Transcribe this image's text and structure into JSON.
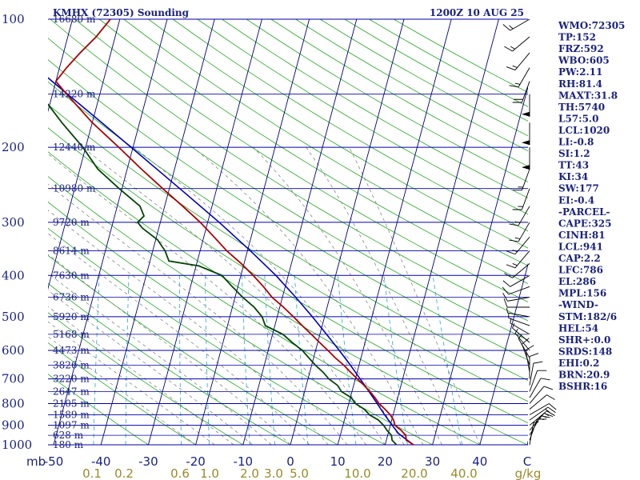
{
  "header": {
    "station": "KMHX (72305) Sounding",
    "time": "1200Z 10 AUG 25"
  },
  "colors": {
    "isobar": "#0000aa",
    "isotherm": "#000080",
    "dry_adiabat": "#22aa22",
    "moist_adiabat": "#777777",
    "mixing_ratio": "#22aacc",
    "temperature": "#aa0000",
    "dewpoint": "#004400",
    "parcel": "#0000bb",
    "label": "#1a237e",
    "mixing_label": "#9a8a2a"
  },
  "chart_data": {
    "type": "skew-t log-p",
    "pressure_range": [
      1000,
      100
    ],
    "temperature_range": [
      -50,
      50
    ],
    "pressure_labels": [
      {
        "p": 100,
        "label": "100"
      },
      {
        "p": 200,
        "label": "200"
      },
      {
        "p": 300,
        "label": "300"
      },
      {
        "p": 400,
        "label": "400"
      },
      {
        "p": 500,
        "label": "500"
      },
      {
        "p": 600,
        "label": "600"
      },
      {
        "p": 700,
        "label": "700"
      },
      {
        "p": 800,
        "label": "800"
      },
      {
        "p": 900,
        "label": "900"
      },
      {
        "p": 1000,
        "label": "1000"
      }
    ],
    "height_labels": [
      {
        "p": 100,
        "label": "16680 m"
      },
      {
        "p": 150,
        "label": "14220 m"
      },
      {
        "p": 200,
        "label": "12440 m"
      },
      {
        "p": 250,
        "label": "10980 m"
      },
      {
        "p": 300,
        "label": "9720 m"
      },
      {
        "p": 350,
        "label": "8614 m"
      },
      {
        "p": 400,
        "label": "7630 m"
      },
      {
        "p": 450,
        "label": "6736 m"
      },
      {
        "p": 500,
        "label": "5920 m"
      },
      {
        "p": 550,
        "label": "5168 m"
      },
      {
        "p": 600,
        "label": "4473 m"
      },
      {
        "p": 650,
        "label": "3826 m"
      },
      {
        "p": 700,
        "label": "3220 m"
      },
      {
        "p": 750,
        "label": "2647 m"
      },
      {
        "p": 800,
        "label": "2105 m"
      },
      {
        "p": 850,
        "label": "1589 m"
      },
      {
        "p": 900,
        "label": "1097 m"
      },
      {
        "p": 950,
        "label": "628 m"
      },
      {
        "p": 1000,
        "label": "180 m"
      }
    ],
    "x_unit_label": "mb",
    "temperature_ticks": [
      "-50",
      "-40",
      "-30",
      "-20",
      "-10",
      "0",
      "10",
      "20",
      "30",
      "40",
      "C"
    ],
    "mixing_ratio_labels": [
      "0.1",
      "0.2",
      "0.6",
      "1.0",
      "2.0",
      "3.0",
      "5.0",
      "10.0",
      "20.0",
      "40.0",
      "g/kg"
    ],
    "mixing_ratio_values": [
      0.1,
      0.2,
      0.6,
      1.0,
      2.0,
      3.0,
      5.0,
      10.0,
      20.0,
      40.0
    ],
    "temperature_profile": [
      {
        "p": 1000,
        "t": 26.0
      },
      {
        "p": 975,
        "t": 24.2
      },
      {
        "p": 950,
        "t": 23.8
      },
      {
        "p": 925,
        "t": 22.6
      },
      {
        "p": 900,
        "t": 21.0
      },
      {
        "p": 875,
        "t": 20.4
      },
      {
        "p": 850,
        "t": 19.4
      },
      {
        "p": 825,
        "t": 18.0
      },
      {
        "p": 800,
        "t": 16.4
      },
      {
        "p": 775,
        "t": 15.2
      },
      {
        "p": 750,
        "t": 13.8
      },
      {
        "p": 725,
        "t": 12.2
      },
      {
        "p": 700,
        "t": 10.4
      },
      {
        "p": 675,
        "t": 8.6
      },
      {
        "p": 650,
        "t": 6.8
      },
      {
        "p": 625,
        "t": 4.6
      },
      {
        "p": 600,
        "t": 2.6
      },
      {
        "p": 575,
        "t": 0.4
      },
      {
        "p": 550,
        "t": -1.8
      },
      {
        "p": 525,
        "t": -4.2
      },
      {
        "p": 500,
        "t": -6.6
      },
      {
        "p": 475,
        "t": -9.2
      },
      {
        "p": 450,
        "t": -12.2
      },
      {
        "p": 425,
        "t": -14.6
      },
      {
        "p": 400,
        "t": -17.4
      },
      {
        "p": 375,
        "t": -20.6
      },
      {
        "p": 350,
        "t": -24.4
      },
      {
        "p": 325,
        "t": -27.8
      },
      {
        "p": 300,
        "t": -31.6
      },
      {
        "p": 275,
        "t": -36.2
      },
      {
        "p": 250,
        "t": -41.4
      },
      {
        "p": 225,
        "t": -47.0
      },
      {
        "p": 200,
        "t": -53.0
      },
      {
        "p": 175,
        "t": -60.0
      },
      {
        "p": 150,
        "t": -67.0
      },
      {
        "p": 140,
        "t": -70.0
      },
      {
        "p": 130,
        "t": -68.5
      },
      {
        "p": 120,
        "t": -66.5
      },
      {
        "p": 110,
        "t": -64.0
      },
      {
        "p": 100,
        "t": -62.0
      }
    ],
    "dewpoint_profile": [
      {
        "p": 1000,
        "t": 22.4
      },
      {
        "p": 975,
        "t": 21.2
      },
      {
        "p": 950,
        "t": 20.8
      },
      {
        "p": 925,
        "t": 19.6
      },
      {
        "p": 900,
        "t": 18.6
      },
      {
        "p": 875,
        "t": 17.2
      },
      {
        "p": 850,
        "t": 15.0
      },
      {
        "p": 825,
        "t": 13.6
      },
      {
        "p": 800,
        "t": 11.4
      },
      {
        "p": 775,
        "t": 10.2
      },
      {
        "p": 750,
        "t": 7.8
      },
      {
        "p": 725,
        "t": 6.6
      },
      {
        "p": 700,
        "t": 4.4
      },
      {
        "p": 675,
        "t": 2.8
      },
      {
        "p": 650,
        "t": 0.8
      },
      {
        "p": 625,
        "t": -1.0
      },
      {
        "p": 600,
        "t": -2.8
      },
      {
        "p": 575,
        "t": -5.4
      },
      {
        "p": 550,
        "t": -7.8
      },
      {
        "p": 525,
        "t": -12.0
      },
      {
        "p": 500,
        "t": -13.2
      },
      {
        "p": 475,
        "t": -15.4
      },
      {
        "p": 450,
        "t": -18.4
      },
      {
        "p": 425,
        "t": -21.2
      },
      {
        "p": 400,
        "t": -24.0
      },
      {
        "p": 380,
        "t": -29.4
      },
      {
        "p": 370,
        "t": -36.0
      },
      {
        "p": 350,
        "t": -37.4
      },
      {
        "p": 330,
        "t": -39.6
      },
      {
        "p": 310,
        "t": -43.4
      },
      {
        "p": 300,
        "t": -44.8
      },
      {
        "p": 290,
        "t": -43.8
      },
      {
        "p": 275,
        "t": -45.2
      },
      {
        "p": 250,
        "t": -50.6
      },
      {
        "p": 225,
        "t": -56.2
      },
      {
        "p": 200,
        "t": -60.6
      },
      {
        "p": 175,
        "t": -66.4
      },
      {
        "p": 150,
        "t": -72.6
      },
      {
        "p": 140,
        "t": -75.6
      },
      {
        "p": 120,
        "t": -78.4
      },
      {
        "p": 100,
        "t": -81.4
      }
    ],
    "parcel_profile": [
      {
        "p": 1000,
        "t": 26.0
      },
      {
        "p": 975,
        "t": 24.4
      },
      {
        "p": 941,
        "t": 22.2
      },
      {
        "p": 900,
        "t": 20.4
      },
      {
        "p": 850,
        "t": 18.2
      },
      {
        "p": 800,
        "t": 16.0
      },
      {
        "p": 750,
        "t": 13.6
      },
      {
        "p": 700,
        "t": 11.0
      },
      {
        "p": 650,
        "t": 8.2
      },
      {
        "p": 600,
        "t": 5.0
      },
      {
        "p": 550,
        "t": 1.4
      },
      {
        "p": 500,
        "t": -2.6
      },
      {
        "p": 450,
        "t": -7.2
      },
      {
        "p": 400,
        "t": -12.6
      },
      {
        "p": 350,
        "t": -19.4
      },
      {
        "p": 300,
        "t": -27.6
      },
      {
        "p": 250,
        "t": -37.8
      },
      {
        "p": 200,
        "t": -50.4
      },
      {
        "p": 175,
        "t": -58.0
      },
      {
        "p": 150,
        "t": -66.8
      },
      {
        "p": 130,
        "t": -75.0
      },
      {
        "p": 120,
        "t": -79.2
      }
    ],
    "wind_profile": [
      {
        "p": 1000,
        "dir": 190,
        "spd": 5
      },
      {
        "p": 975,
        "dir": 200,
        "spd": 10
      },
      {
        "p": 950,
        "dir": 210,
        "spd": 15
      },
      {
        "p": 925,
        "dir": 220,
        "spd": 15
      },
      {
        "p": 900,
        "dir": 230,
        "spd": 15
      },
      {
        "p": 875,
        "dir": 235,
        "spd": 15
      },
      {
        "p": 850,
        "dir": 240,
        "spd": 10
      },
      {
        "p": 825,
        "dir": 230,
        "spd": 10
      },
      {
        "p": 800,
        "dir": 220,
        "spd": 10
      },
      {
        "p": 775,
        "dir": 210,
        "spd": 10
      },
      {
        "p": 750,
        "dir": 200,
        "spd": 10
      },
      {
        "p": 725,
        "dir": 190,
        "spd": 10
      },
      {
        "p": 700,
        "dir": 180,
        "spd": 10
      },
      {
        "p": 675,
        "dir": 170,
        "spd": 10
      },
      {
        "p": 650,
        "dir": 160,
        "spd": 10
      },
      {
        "p": 625,
        "dir": 150,
        "spd": 5
      },
      {
        "p": 600,
        "dir": 140,
        "spd": 5
      },
      {
        "p": 575,
        "dir": 130,
        "spd": 5
      },
      {
        "p": 550,
        "dir": 120,
        "spd": 5
      },
      {
        "p": 525,
        "dir": 110,
        "spd": 5
      },
      {
        "p": 500,
        "dir": 100,
        "spd": 5
      },
      {
        "p": 475,
        "dir": 90,
        "spd": 10
      },
      {
        "p": 450,
        "dir": 80,
        "spd": 10
      },
      {
        "p": 425,
        "dir": 70,
        "spd": 10
      },
      {
        "p": 400,
        "dir": 60,
        "spd": 10
      },
      {
        "p": 375,
        "dir": 50,
        "spd": 10
      },
      {
        "p": 350,
        "dir": 40,
        "spd": 15
      },
      {
        "p": 325,
        "dir": 40,
        "spd": 15
      },
      {
        "p": 300,
        "dir": 30,
        "spd": 15
      },
      {
        "p": 275,
        "dir": 30,
        "spd": 15
      },
      {
        "p": 250,
        "dir": 20,
        "spd": 15
      },
      {
        "p": 225,
        "dir": 20,
        "spd": 15
      },
      {
        "p": 200,
        "dir": 360,
        "spd": 50
      },
      {
        "p": 175,
        "dir": 360,
        "spd": 50
      },
      {
        "p": 150,
        "dir": 360,
        "spd": 50
      },
      {
        "p": 140,
        "dir": 20,
        "spd": 20
      },
      {
        "p": 130,
        "dir": 30,
        "spd": 15
      },
      {
        "p": 120,
        "dir": 40,
        "spd": 15
      },
      {
        "p": 110,
        "dir": 50,
        "spd": 15
      },
      {
        "p": 100,
        "dir": 60,
        "spd": 15
      }
    ]
  },
  "indices": [
    "WMO:72305",
    "TP:152",
    "FRZ:592",
    "WBO:605",
    "PW:2.11",
    "RH:81.4",
    "MAXT:31.8",
    "TH:5740",
    "L57:5.0",
    "LCL:1020",
    "LI:-0.8",
    "SI:1.2",
    "TT:43",
    "KI:34",
    "SW:177",
    "EI:-0.4",
    "-PARCEL-",
    "CAPE:325",
    "CINH:81",
    "LCL:941",
    "CAP:2.2",
    "LFC:786",
    "EL:286",
    "MPL:156",
    "-WIND-",
    "STM:182/6",
    "HEL:54",
    "SHR+:0.0",
    "SRDS:148",
    "EHI:0.2",
    "BRN:20.9",
    "BSHR:16"
  ]
}
